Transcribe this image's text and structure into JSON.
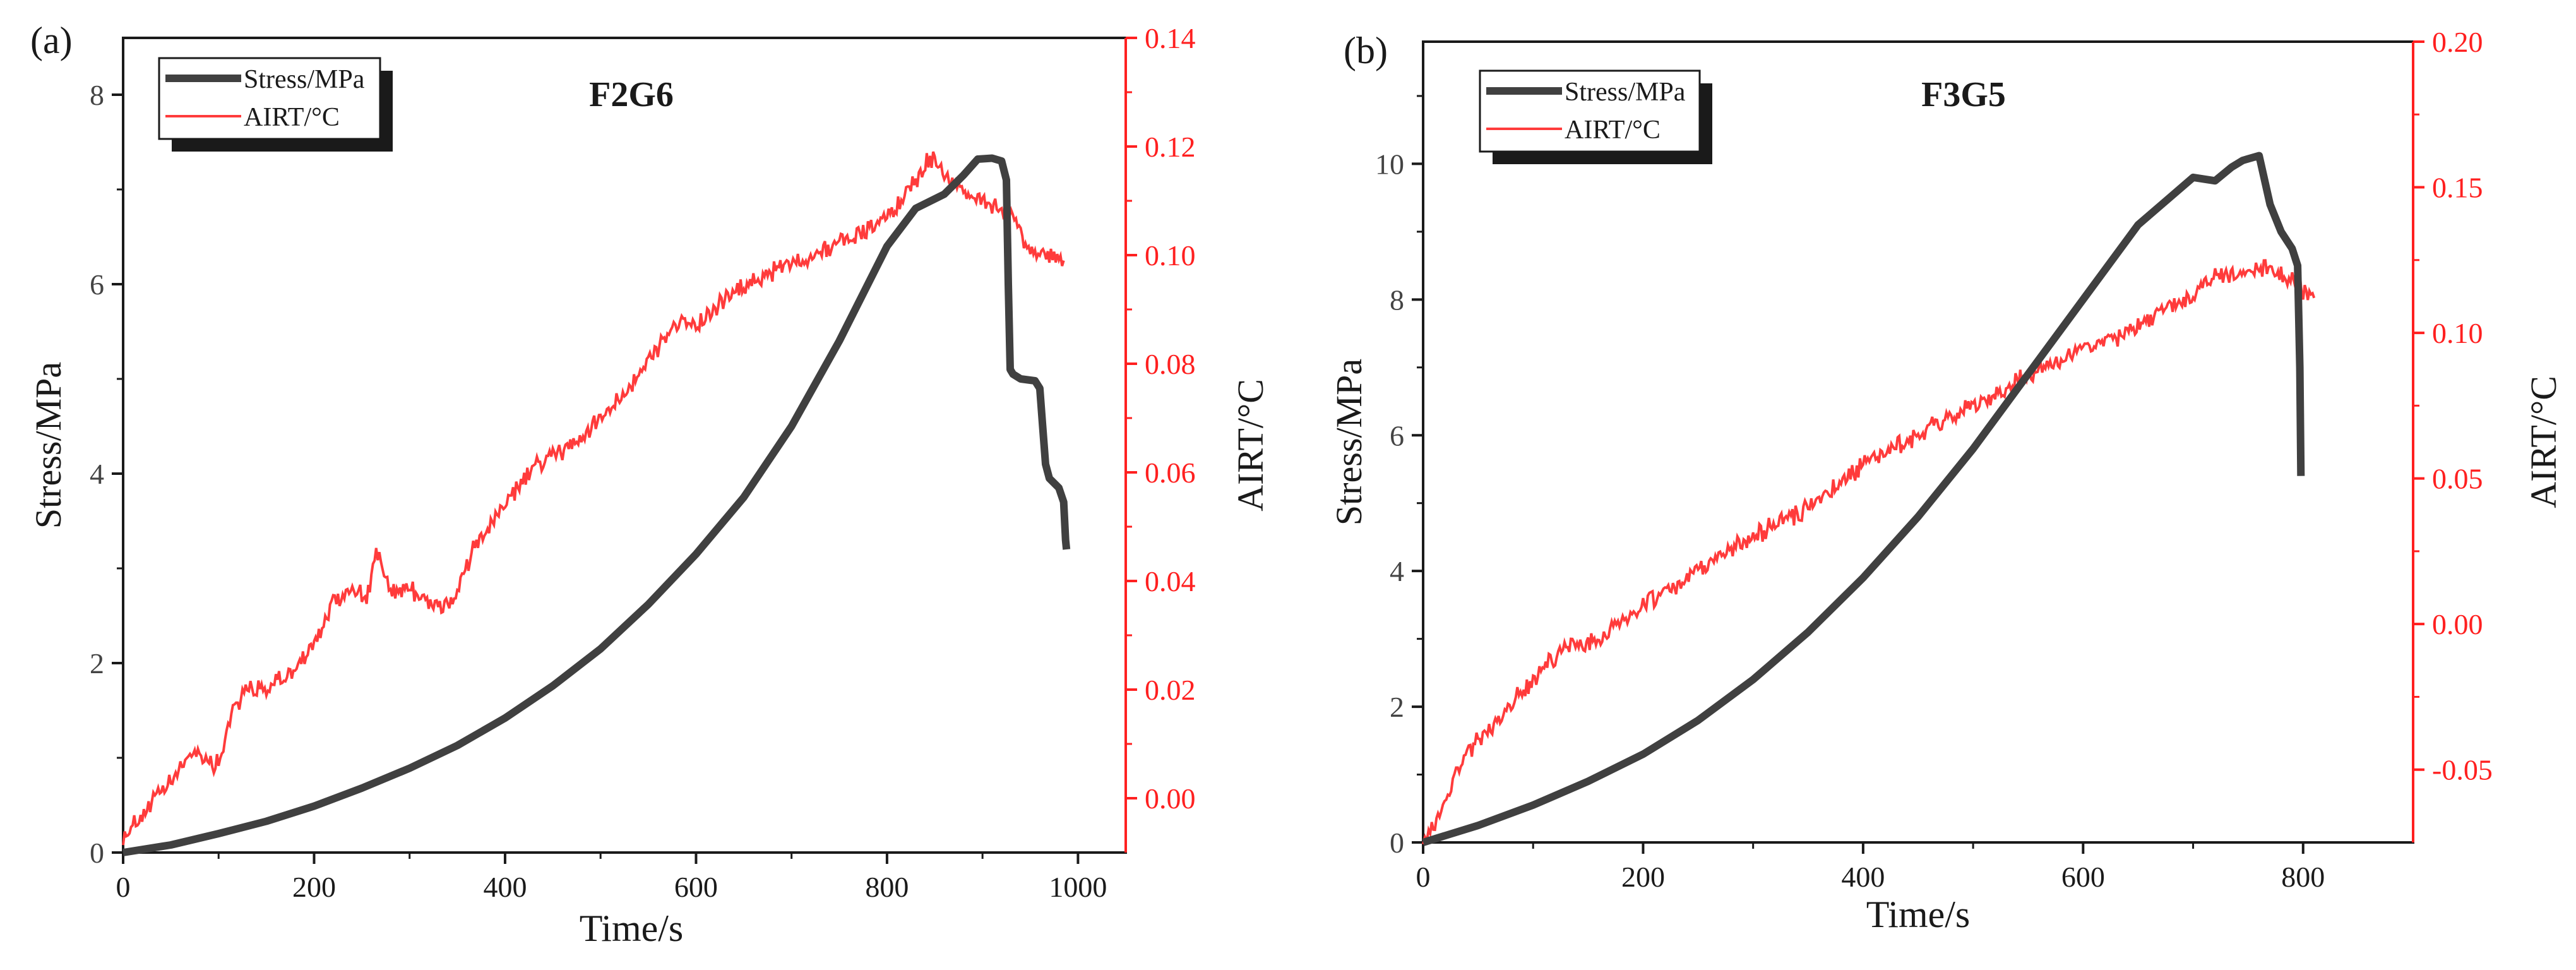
{
  "colors": {
    "stress": "#404040",
    "airt": "#ff3b3b",
    "axis_left": "#1a1a1a",
    "axis_right": "#ff2020"
  },
  "chart_data": [
    {
      "panel_label": "(a)",
      "title": "F2G6",
      "type": "line",
      "xlabel": "Time/s",
      "ylabel_left": "Stress/MPa",
      "ylabel_right": "AIRT/°C",
      "xlim": [
        0,
        1050
      ],
      "ylim_left": [
        0,
        8.6
      ],
      "ylim_right": [
        -0.01,
        0.14
      ],
      "xticks": [
        "0",
        "200",
        "400",
        "600",
        "800",
        "1000"
      ],
      "yticks_left": [
        "0",
        "2",
        "4",
        "6",
        "8"
      ],
      "yticks_right": [
        "0.00",
        "0.02",
        "0.04",
        "0.06",
        "0.08",
        "0.10",
        "0.12",
        "0.14"
      ],
      "grid": false,
      "legend_position": "top-left",
      "series": [
        {
          "name": "Stress/MPa",
          "axis": "left",
          "x": [
            0,
            50,
            100,
            150,
            200,
            250,
            300,
            350,
            400,
            450,
            500,
            550,
            600,
            650,
            700,
            750,
            800,
            830,
            860,
            880,
            895,
            910,
            920,
            925,
            927,
            929,
            932,
            940,
            955,
            960,
            963,
            966,
            970,
            980,
            985,
            987,
            988
          ],
          "values": [
            0,
            0.08,
            0.2,
            0.33,
            0.49,
            0.68,
            0.89,
            1.13,
            1.42,
            1.76,
            2.15,
            2.62,
            3.15,
            3.75,
            4.5,
            5.4,
            6.4,
            6.8,
            6.95,
            7.15,
            7.32,
            7.33,
            7.3,
            7.1,
            6.0,
            5.1,
            5.05,
            5.0,
            4.98,
            4.9,
            4.5,
            4.1,
            3.95,
            3.85,
            3.7,
            3.3,
            3.2
          ]
        },
        {
          "name": "AIRT/°C",
          "axis": "right",
          "x": [
            0,
            20,
            50,
            75,
            90,
            100,
            115,
            130,
            150,
            175,
            200,
            220,
            240,
            255,
            265,
            280,
            300,
            320,
            340,
            355,
            370,
            400,
            430,
            460,
            480,
            500,
            540,
            580,
            600,
            640,
            680,
            720,
            760,
            800,
            830,
            845,
            870,
            900,
            930,
            950,
            970,
            985
          ],
          "values": [
            -0.007,
            -0.003,
            0.003,
            0.009,
            0.007,
            0.006,
            0.017,
            0.02,
            0.02,
            0.023,
            0.028,
            0.036,
            0.039,
            0.037,
            0.045,
            0.038,
            0.039,
            0.036,
            0.035,
            0.04,
            0.047,
            0.054,
            0.061,
            0.064,
            0.066,
            0.07,
            0.078,
            0.088,
            0.087,
            0.093,
            0.097,
            0.1,
            0.103,
            0.107,
            0.114,
            0.118,
            0.113,
            0.11,
            0.107,
            0.1,
            0.1,
            0.099
          ]
        }
      ]
    },
    {
      "panel_label": "(b)",
      "title": "F3G5",
      "type": "line",
      "xlabel": "Time/s",
      "ylabel_left": "Stress/MPa",
      "ylabel_right": "AIRT/°C",
      "xlim": [
        0,
        900
      ],
      "ylim_left": [
        0,
        11.8
      ],
      "ylim_right": [
        -0.075,
        0.2
      ],
      "xticks": [
        "0",
        "200",
        "400",
        "600",
        "800"
      ],
      "yticks_left": [
        "0",
        "2",
        "4",
        "6",
        "8",
        "10"
      ],
      "yticks_right": [
        "-0.05",
        "0.00",
        "0.05",
        "0.10",
        "0.15",
        "0.20"
      ],
      "grid": false,
      "legend_position": "top-left",
      "series": [
        {
          "name": "Stress/MPa",
          "axis": "left",
          "x": [
            0,
            50,
            100,
            150,
            200,
            250,
            300,
            350,
            400,
            450,
            500,
            550,
            600,
            650,
            700,
            720,
            735,
            745,
            760,
            770,
            780,
            790,
            795,
            797,
            798
          ],
          "values": [
            0,
            0.25,
            0.55,
            0.9,
            1.3,
            1.8,
            2.4,
            3.1,
            3.9,
            4.8,
            5.8,
            6.9,
            8.0,
            9.1,
            9.8,
            9.75,
            9.95,
            10.05,
            10.12,
            9.4,
            9.0,
            8.75,
            8.5,
            7.0,
            5.4
          ]
        },
        {
          "name": "AIRT/°C",
          "axis": "right",
          "x": [
            0,
            5,
            15,
            30,
            50,
            80,
            110,
            130,
            160,
            200,
            250,
            300,
            350,
            400,
            450,
            500,
            550,
            600,
            640,
            680,
            700,
            720,
            740,
            760,
            780,
            800,
            810
          ],
          "values": [
            -0.073,
            -0.073,
            -0.065,
            -0.05,
            -0.04,
            -0.028,
            -0.015,
            -0.008,
            -0.005,
            0.006,
            0.018,
            0.03,
            0.04,
            0.055,
            0.065,
            0.075,
            0.085,
            0.095,
            0.1,
            0.11,
            0.113,
            0.12,
            0.12,
            0.122,
            0.12,
            0.115,
            0.112
          ]
        }
      ]
    }
  ]
}
